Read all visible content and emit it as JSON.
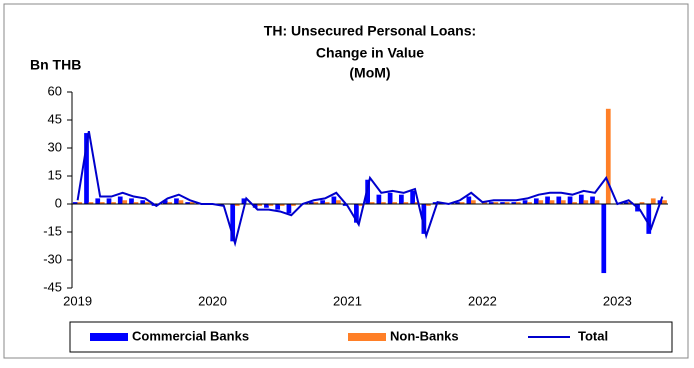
{
  "chart_data": {
    "type": "bar-line",
    "title": [
      "TH: Unsecured Personal Loans:",
      "Change in Value",
      "(MoM)"
    ],
    "y_label": "Bn THB",
    "categories": [
      "2019",
      null,
      null,
      null,
      null,
      null,
      null,
      null,
      null,
      null,
      null,
      null,
      "2020",
      null,
      null,
      null,
      null,
      null,
      null,
      null,
      null,
      null,
      null,
      null,
      "2021",
      null,
      null,
      null,
      null,
      null,
      null,
      null,
      null,
      null,
      null,
      null,
      "2022",
      null,
      null,
      null,
      null,
      null,
      null,
      null,
      null,
      null,
      null,
      null,
      "2023",
      null,
      null,
      null,
      null
    ],
    "series": [
      {
        "name": "Commercial Banks",
        "color": "#0000ff",
        "kind": "bar",
        "values": [
          1,
          38,
          3,
          3,
          4,
          3,
          2,
          -1,
          2,
          3,
          1,
          0,
          0,
          -1,
          -20,
          3,
          -2,
          -2,
          -3,
          -5,
          0,
          1,
          2,
          4,
          -1,
          -10,
          13,
          5,
          6,
          5,
          7,
          -16,
          1,
          0,
          1,
          4,
          0,
          1,
          1,
          1,
          2,
          3,
          4,
          4,
          4,
          5,
          4,
          -37,
          0,
          1,
          -4,
          -16,
          2
        ]
      },
      {
        "name": "Non-Banks",
        "color": "#ff7f27",
        "kind": "bar",
        "values": [
          1,
          1,
          1,
          1,
          2,
          1,
          1,
          0,
          1,
          2,
          1,
          0,
          0,
          0,
          -1,
          0,
          -1,
          -1,
          -1,
          -1,
          0,
          1,
          1,
          2,
          0,
          -1,
          1,
          1,
          1,
          1,
          1,
          -1,
          0,
          0,
          1,
          2,
          1,
          1,
          1,
          1,
          1,
          2,
          2,
          2,
          1,
          2,
          2,
          51,
          0,
          1,
          1,
          3,
          2
        ]
      },
      {
        "name": "Total",
        "color": "#0000cc",
        "kind": "line",
        "values": [
          2,
          39,
          4,
          4,
          6,
          4,
          3,
          -1,
          3,
          5,
          2,
          0,
          0,
          -1,
          -21,
          3,
          -3,
          -3,
          -4,
          -6,
          0,
          2,
          3,
          6,
          -1,
          -11,
          14,
          6,
          7,
          6,
          8,
          -17,
          1,
          0,
          2,
          6,
          1,
          2,
          2,
          2,
          3,
          5,
          6,
          6,
          5,
          7,
          6,
          14,
          0,
          2,
          -3,
          -13,
          4
        ]
      }
    ],
    "ylim": [
      -45,
      60
    ],
    "yticks": [
      -45,
      -30,
      -15,
      0,
      15,
      30,
      45,
      60
    ],
    "legend": "bottom",
    "grid": false
  }
}
